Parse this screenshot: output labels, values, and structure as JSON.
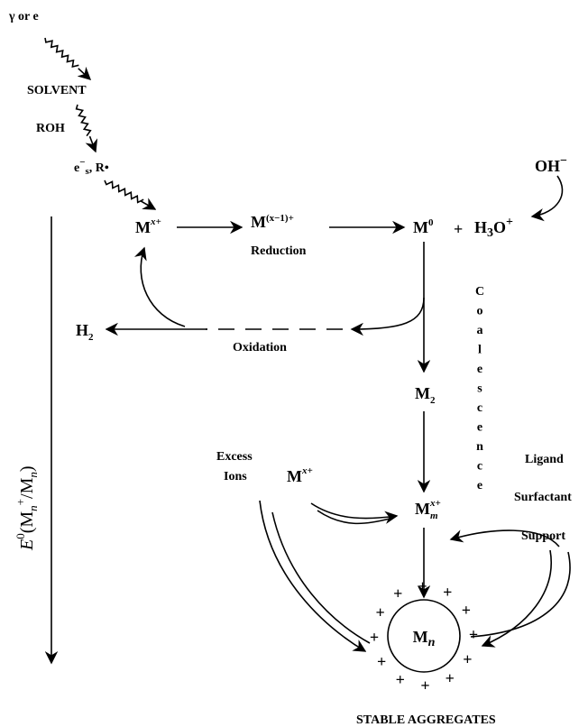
{
  "inputs": {
    "radiation": "γ or e",
    "solvent": "SOLVENT",
    "alcohol": "ROH",
    "radicals": [
      "e",
      "−",
      "s",
      ", R•"
    ]
  },
  "reduction": {
    "ion": [
      "M",
      "x+"
    ],
    "intermediate": [
      "M",
      "(x−1)+"
    ],
    "label": "Reduction",
    "atom": [
      "M",
      "0"
    ],
    "plus": "+",
    "hydronium": [
      "H",
      "3",
      "O",
      "+"
    ],
    "hydroxide": [
      "OH",
      "−"
    ]
  },
  "oxidation": {
    "label": "Oxidation",
    "product": [
      "H",
      "2"
    ]
  },
  "coalescence": {
    "label": "Coalescence",
    "dimer": [
      "M",
      "2"
    ],
    "cluster": [
      "M",
      "m",
      "x+"
    ]
  },
  "excess": {
    "label": [
      "Excess",
      "Ions"
    ],
    "ion": [
      "M",
      "x+"
    ]
  },
  "stabilizers": [
    "Ligand",
    "Surfactant",
    "Support"
  ],
  "aggregate": {
    "core": [
      "M",
      "n"
    ],
    "charges": [
      "+",
      "+",
      "+",
      "+",
      "+",
      "+",
      "+",
      "+",
      "+",
      "+",
      "+",
      "+"
    ],
    "label": "STABLE AGGREGATES"
  },
  "axis_label": [
    "E",
    "0",
    "(M",
    "n",
    "+",
    "/M",
    "n",
    ")"
  ]
}
